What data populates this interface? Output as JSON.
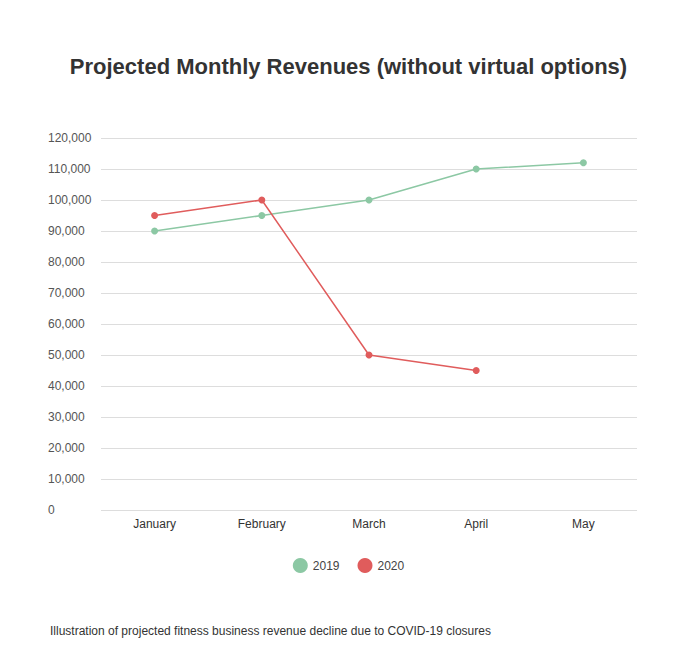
{
  "chart_data": {
    "type": "line",
    "title": "Projected Monthly Revenues (without virtual options)",
    "caption": "Illustration of projected fitness business revenue decline due to COVID-19 closures",
    "categories": [
      "January",
      "February",
      "March",
      "April",
      "May"
    ],
    "series": [
      {
        "name": "2019",
        "color": "#8cc8a4",
        "values": [
          90000,
          95000,
          100000,
          110000,
          112000
        ]
      },
      {
        "name": "2020",
        "color": "#e05c5c",
        "values": [
          95000,
          100000,
          50000,
          45000,
          null
        ]
      }
    ],
    "ylim": [
      0,
      120000
    ],
    "yticks": [
      0,
      {
        "value": 10000,
        "label": "10,000"
      },
      {
        "value": 20000,
        "label": "20,000"
      },
      {
        "value": 30000,
        "label": "30,000"
      },
      {
        "value": 40000,
        "label": "40,000"
      },
      {
        "value": 50000,
        "label": "50,000"
      },
      {
        "value": 60000,
        "label": "60,000"
      },
      {
        "value": 70000,
        "label": "70,000"
      },
      {
        "value": 80000,
        "label": "80,000"
      },
      {
        "value": 90000,
        "label": "90,000"
      },
      {
        "value": 100000,
        "label": "100,000"
      },
      {
        "value": 110000,
        "label": "110,000"
      },
      {
        "value": 120000,
        "label": "120,000"
      }
    ],
    "grid": true,
    "legend": "bottom",
    "marker": "circle"
  }
}
